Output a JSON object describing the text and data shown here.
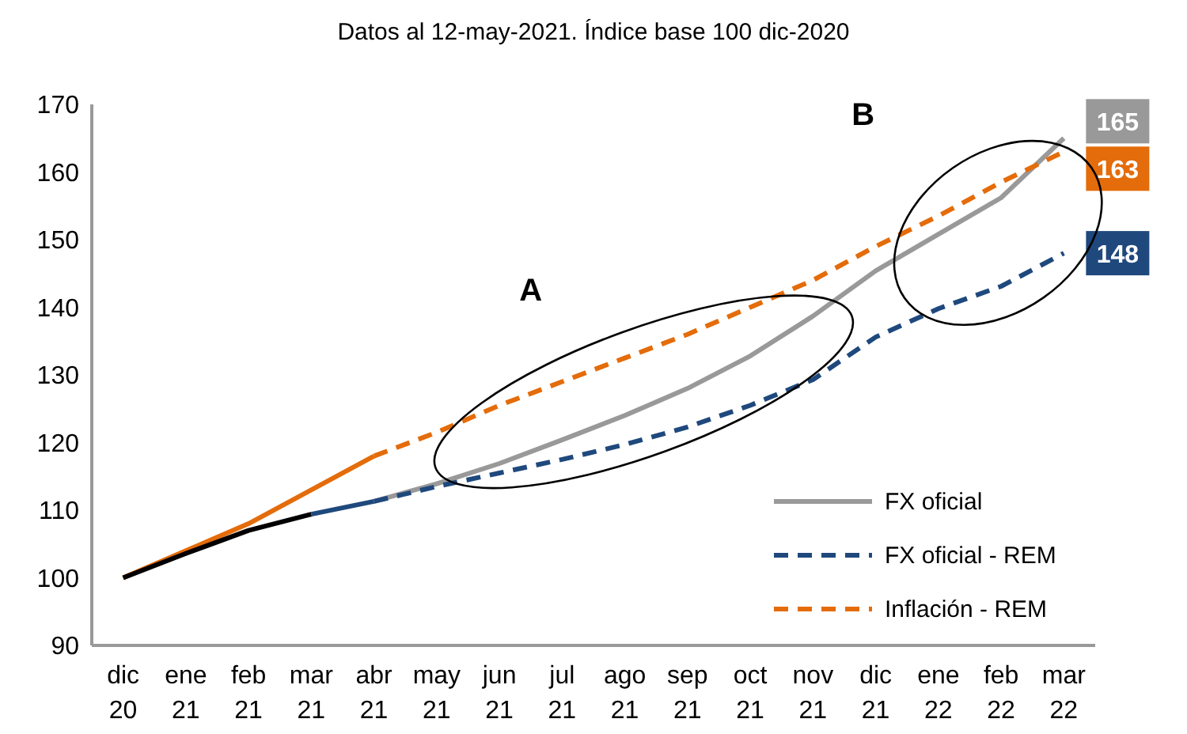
{
  "chart_data": {
    "type": "line",
    "subtitle": "Datos al 12-may-2021. Índice base 100 dic-2020",
    "categories": [
      "dic 20",
      "ene 21",
      "feb 21",
      "mar 21",
      "abr 21",
      "may 21",
      "jun 21",
      "jul 21",
      "ago 21",
      "sep 21",
      "oct 21",
      "nov 21",
      "dic 21",
      "ene 22",
      "feb 22",
      "mar 22"
    ],
    "ylim": [
      90,
      170
    ],
    "yticks": [
      90,
      100,
      110,
      120,
      130,
      140,
      150,
      160,
      170
    ],
    "grid": false,
    "legend": "bottom right",
    "marker": "none",
    "annotations": [
      "A",
      "B"
    ],
    "series": [
      {
        "color": "#e46c0a",
        "line_style": "solid",
        "values": [
          100,
          104,
          108,
          113,
          118,
          null,
          null,
          null,
          null,
          null,
          null,
          null,
          null,
          null,
          null,
          null
        ]
      },
      {
        "color": "#000000",
        "line_style": "solid",
        "values": [
          100,
          103.6,
          107,
          109.4,
          null,
          null,
          null,
          null,
          null,
          null,
          null,
          null,
          null,
          null,
          null,
          null
        ]
      },
      {
        "color": "#1f497d",
        "line_style": "solid",
        "values": [
          null,
          null,
          null,
          109.4,
          111.3,
          null,
          null,
          null,
          null,
          null,
          null,
          null,
          null,
          null,
          null,
          null
        ]
      },
      {
        "name": "FX oficial",
        "color": "#999999",
        "line_style": "solid",
        "values": [
          null,
          null,
          null,
          null,
          111.3,
          113.9,
          116.9,
          120.4,
          124,
          128,
          132.8,
          138.7,
          145.4,
          150.8,
          156.2,
          165
        ],
        "value_labels": [
          null,
          null,
          null,
          null,
          null,
          null,
          null,
          null,
          null,
          null,
          null,
          null,
          null,
          null,
          null,
          "165"
        ]
      },
      {
        "name": "FX oficial - REM",
        "color": "#1f497d",
        "line_style": "dashed",
        "values": [
          null,
          null,
          null,
          null,
          111.3,
          113.5,
          115.5,
          117.5,
          119.7,
          122.3,
          125.5,
          129.3,
          135.6,
          139.8,
          143.1,
          148
        ],
        "value_labels": [
          null,
          null,
          null,
          null,
          null,
          null,
          null,
          null,
          null,
          null,
          null,
          null,
          null,
          null,
          null,
          "148"
        ]
      },
      {
        "name": "Inflación - REM",
        "color": "#e46c0a",
        "line_style": "dashed",
        "values": [
          null,
          null,
          null,
          null,
          118,
          121.5,
          125.5,
          129,
          132.5,
          136,
          140,
          144,
          149,
          153.5,
          158.5,
          163
        ],
        "value_labels": [
          null,
          null,
          null,
          null,
          null,
          null,
          null,
          null,
          null,
          null,
          null,
          null,
          null,
          null,
          null,
          "163"
        ]
      }
    ]
  }
}
